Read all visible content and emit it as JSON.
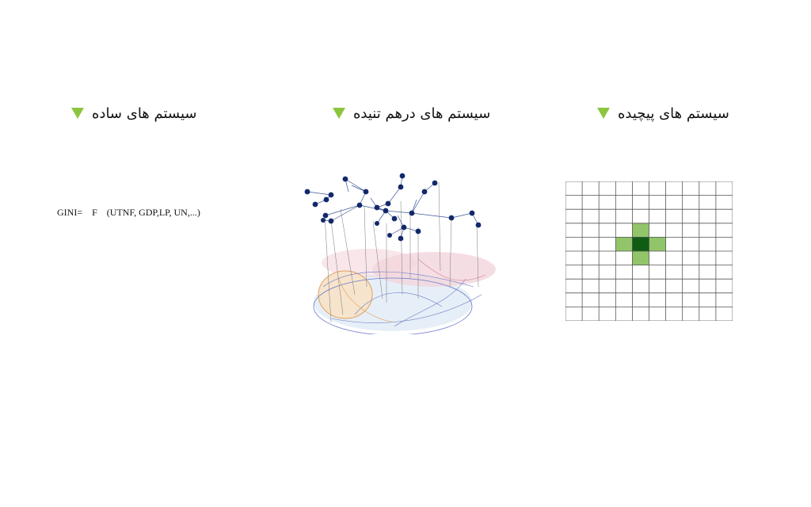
{
  "headings": {
    "simple": "سیستم های ساده",
    "tangled": "سیستم های درهم تنیده",
    "complex": "سیستم های پیچیده"
  },
  "formula": {
    "lhs": "GINI=",
    "func": "F",
    "args": "(UTNF, GDP,LP, UN,...)"
  },
  "colors": {
    "accent": "#8cc63f",
    "node": "#13286b",
    "cell_light": "#92c56a",
    "cell_dark": "#0e5d12",
    "grid_line": "#555555"
  },
  "grid": {
    "columns": 10,
    "rows": 10,
    "center_cell": [
      4,
      4
    ],
    "neighbor_cells": [
      [
        4,
        3
      ],
      [
        3,
        4
      ],
      [
        5,
        4
      ],
      [
        4,
        5
      ]
    ]
  },
  "icons": [
    "triangle-down-icon",
    "network-graph-figure",
    "cellular-grid-figure"
  ]
}
